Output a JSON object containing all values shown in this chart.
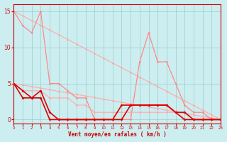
{
  "title": "",
  "xlabel": "Vent moyen/en rafales ( km/h )",
  "ylabel": "",
  "background_color": "#cceef0",
  "grid_color": "#99cccc",
  "x_ticks": [
    0,
    1,
    2,
    3,
    4,
    5,
    6,
    7,
    8,
    9,
    10,
    11,
    12,
    13,
    14,
    15,
    16,
    17,
    18,
    19,
    20,
    21,
    22,
    23
  ],
  "y_ticks": [
    0,
    5,
    10,
    15
  ],
  "xlim": [
    0,
    23
  ],
  "ylim": [
    -0.5,
    16
  ],
  "series": [
    {
      "x": [
        0,
        1,
        2,
        3,
        4,
        5,
        6,
        7,
        8,
        9,
        10,
        11,
        12,
        13,
        14,
        15,
        16,
        17,
        18,
        19,
        20,
        21,
        22,
        23
      ],
      "y": [
        15.0,
        14.35,
        13.7,
        13.04,
        12.39,
        11.74,
        11.09,
        10.43,
        9.78,
        9.13,
        8.48,
        7.83,
        7.17,
        6.52,
        5.87,
        5.22,
        4.57,
        3.91,
        3.26,
        2.61,
        1.96,
        1.3,
        0.65,
        0.0
      ],
      "color": "#ffaaaa",
      "linewidth": 0.8,
      "marker": "D",
      "markersize": 1.8
    },
    {
      "x": [
        0,
        1,
        2,
        3,
        4,
        5,
        6,
        7,
        8,
        9,
        10,
        11,
        12,
        13,
        14,
        15,
        16,
        17,
        18,
        19,
        20,
        21,
        22,
        23
      ],
      "y": [
        5.0,
        4.78,
        4.57,
        4.35,
        4.13,
        3.91,
        3.7,
        3.48,
        3.26,
        3.04,
        2.83,
        2.61,
        2.39,
        2.17,
        1.96,
        1.74,
        1.52,
        1.3,
        1.09,
        0.87,
        0.65,
        0.43,
        0.22,
        0.0
      ],
      "color": "#ffaaaa",
      "linewidth": 0.8,
      "marker": "D",
      "markersize": 1.8
    },
    {
      "x": [
        0,
        1,
        2,
        3,
        4,
        5,
        6,
        7,
        8,
        9,
        10,
        11,
        12,
        13,
        14,
        15,
        16,
        17,
        18,
        19,
        20,
        21,
        22,
        23
      ],
      "y": [
        15,
        13,
        12,
        15,
        5,
        5,
        4,
        3,
        3,
        0,
        0,
        0,
        0,
        0,
        8,
        12,
        8,
        8,
        5,
        2,
        1,
        1,
        0,
        0
      ],
      "color": "#ff8888",
      "linewidth": 0.9,
      "marker": "D",
      "markersize": 1.8
    },
    {
      "x": [
        0,
        1,
        2,
        3,
        4,
        5,
        6,
        7,
        8,
        9,
        10,
        11,
        12,
        13,
        14,
        15,
        16,
        17,
        18,
        19,
        20,
        21,
        22,
        23
      ],
      "y": [
        5,
        4,
        4,
        4,
        3,
        3,
        3,
        2,
        2,
        1,
        1,
        1,
        1,
        1,
        1,
        1,
        1,
        1,
        1,
        0,
        0,
        0,
        0,
        0
      ],
      "color": "#ffaaaa",
      "linewidth": 0.8,
      "marker": "D",
      "markersize": 1.8
    },
    {
      "x": [
        0,
        1,
        2,
        3,
        4,
        5,
        6,
        7,
        8,
        9,
        10,
        11,
        12,
        13,
        14,
        15,
        16,
        17,
        18,
        19,
        20,
        21,
        22,
        23
      ],
      "y": [
        5,
        4,
        3,
        4,
        1,
        0,
        0,
        0,
        0,
        0,
        0,
        0,
        0,
        2,
        2,
        2,
        2,
        2,
        1,
        1,
        0,
        0,
        0,
        0
      ],
      "color": "#dd0000",
      "linewidth": 1.2,
      "marker": "D",
      "markersize": 2.0
    },
    {
      "x": [
        0,
        1,
        2,
        3,
        4,
        5,
        6,
        7,
        8,
        9,
        10,
        11,
        12,
        13,
        14,
        15,
        16,
        17,
        18,
        19,
        20,
        21,
        22,
        23
      ],
      "y": [
        5,
        3,
        3,
        3,
        0,
        0,
        0,
        0,
        0,
        0,
        0,
        0,
        2,
        2,
        2,
        2,
        2,
        2,
        1,
        0,
        0,
        0,
        0,
        0
      ],
      "color": "#dd0000",
      "linewidth": 1.2,
      "marker": "D",
      "markersize": 2.0
    }
  ]
}
